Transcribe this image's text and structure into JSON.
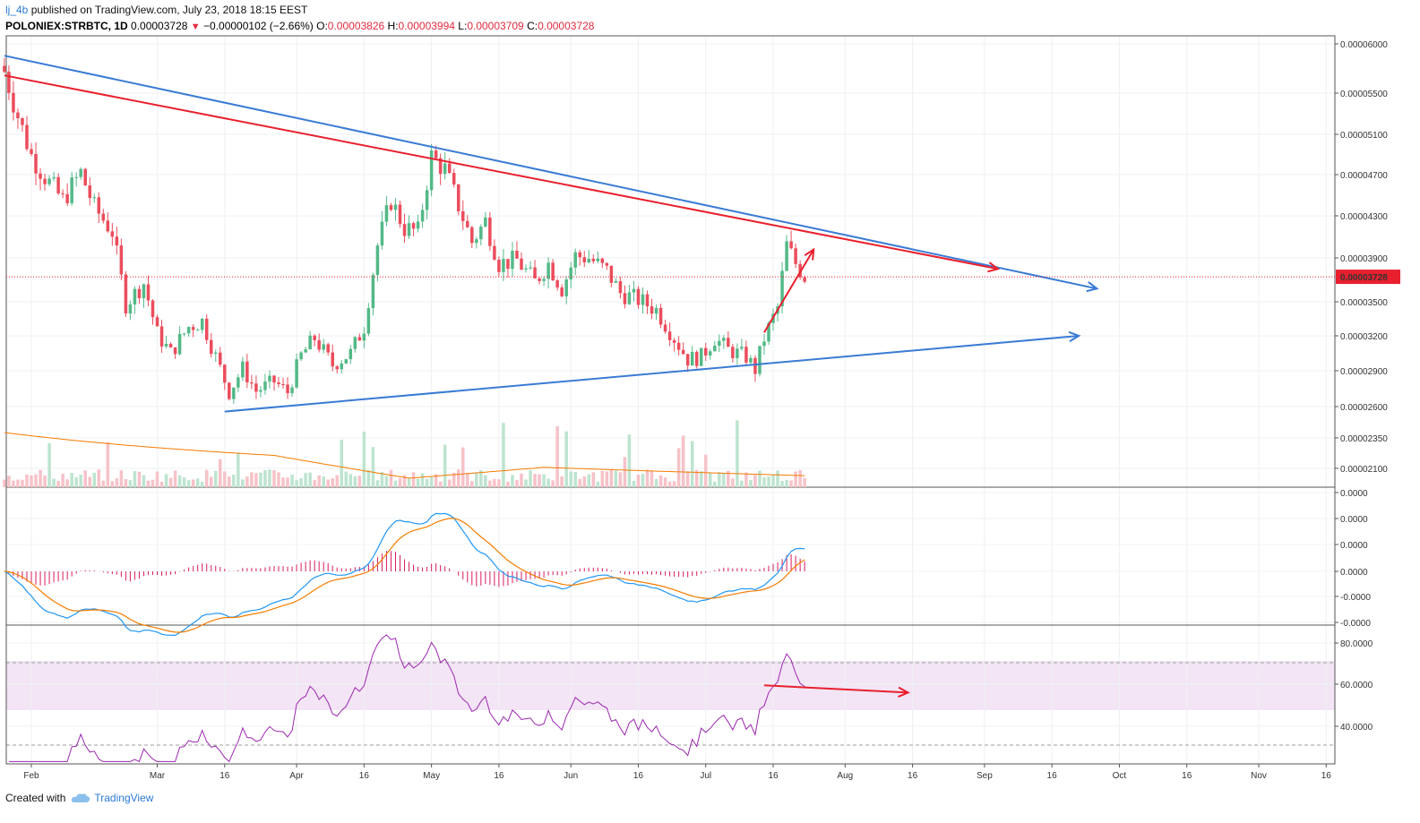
{
  "header": {
    "author": "lj_4b",
    "published_text": "published on TradingView.com, July 23, 2018 18:15 EEST",
    "symbol": "POLONIEX:STRBTC, 1D",
    "last": "0.00003728",
    "change": "−0.00000102 (−2.66%)",
    "o_label": "O:",
    "o_value": "0.00003826",
    "h_label": "H:",
    "h_value": "0.00003994",
    "l_label": "L:",
    "l_value": "0.00003709",
    "c_label": "C:",
    "c_value": "0.00003728"
  },
  "footer": {
    "created_with": "Created with",
    "brand": "TradingView"
  },
  "colors": {
    "up": "#53b987",
    "down": "#eb4d5c",
    "blue_line": "#3a7bd5",
    "red_line": "#e8202e",
    "macd_line": "#2196f3",
    "signal_line": "#f57c00",
    "hist": "#d81b60",
    "rsi": "#9c27b0",
    "rsi_band": "#f3e5f5",
    "volume_ma": "#f57c00",
    "last_price_badge": "#e8202e"
  },
  "chart_data": [
    {
      "type": "candlestick",
      "y_ticks": [
        "0.00006000",
        "0.00005500",
        "0.00005100",
        "0.00004700",
        "0.00004300",
        "0.00003900",
        "0.00003500",
        "0.00003200",
        "0.00002900",
        "0.00002600",
        "0.00002350",
        "0.00002100"
      ],
      "last_price_label": "0.00003728",
      "x_ticks": [
        "Feb",
        "Mar",
        "16",
        "Apr",
        "16",
        "May",
        "16",
        "Jun",
        "16",
        "Jul",
        "16",
        "Aug",
        "16",
        "Sep",
        "16",
        "Oct",
        "16",
        "Nov",
        "16"
      ],
      "x_tick_dates": [
        "2018-02-01",
        "2018-03-01",
        "2018-03-16",
        "2018-04-01",
        "2018-04-16",
        "2018-05-01",
        "2018-05-16",
        "2018-06-01",
        "2018-06-16",
        "2018-07-01",
        "2018-07-16",
        "2018-08-01",
        "2018-08-16",
        "2018-09-01",
        "2018-09-16",
        "2018-10-01",
        "2018-10-16",
        "2018-11-01",
        "2018-11-16"
      ],
      "keyframes": [
        [
          "2018-01-26",
          5.72e-05
        ],
        [
          "2018-01-29",
          5.28e-05
        ],
        [
          "2018-02-01",
          4.89e-05
        ],
        [
          "2018-02-04",
          4.68e-05
        ],
        [
          "2018-02-08",
          4.45e-05
        ],
        [
          "2018-02-12",
          4.72e-05
        ],
        [
          "2018-02-15",
          4.38e-05
        ],
        [
          "2018-02-19",
          4.15e-05
        ],
        [
          "2018-02-22",
          3.48e-05
        ],
        [
          "2018-02-26",
          3.67e-05
        ],
        [
          "2018-03-01",
          3.22e-05
        ],
        [
          "2018-03-04",
          3.05e-05
        ],
        [
          "2018-03-08",
          3.28e-05
        ],
        [
          "2018-03-11",
          3.33e-05
        ],
        [
          "2018-03-14",
          3.02e-05
        ],
        [
          "2018-03-17",
          2.72e-05
        ],
        [
          "2018-03-20",
          2.92e-05
        ],
        [
          "2018-03-23",
          2.73e-05
        ],
        [
          "2018-03-27",
          2.81e-05
        ],
        [
          "2018-03-30",
          2.72e-05
        ],
        [
          "2018-04-02",
          3.03e-05
        ],
        [
          "2018-04-05",
          3.18e-05
        ],
        [
          "2018-04-09",
          2.95e-05
        ],
        [
          "2018-04-13",
          3.05e-05
        ],
        [
          "2018-04-16",
          3.28e-05
        ],
        [
          "2018-04-19",
          4.02e-05
        ],
        [
          "2018-04-22",
          4.45e-05
        ],
        [
          "2018-04-25",
          4.18e-05
        ],
        [
          "2018-04-28",
          4.15e-05
        ],
        [
          "2018-05-01",
          4.88e-05
        ],
        [
          "2018-05-04",
          4.75e-05
        ],
        [
          "2018-05-07",
          4.4e-05
        ],
        [
          "2018-05-10",
          4.05e-05
        ],
        [
          "2018-05-13",
          4.25e-05
        ],
        [
          "2018-05-16",
          3.85e-05
        ],
        [
          "2018-05-20",
          3.88e-05
        ],
        [
          "2018-05-24",
          3.68e-05
        ],
        [
          "2018-05-27",
          3.85e-05
        ],
        [
          "2018-05-30",
          3.62e-05
        ],
        [
          "2018-06-02",
          3.92e-05
        ],
        [
          "2018-06-05",
          3.9e-05
        ],
        [
          "2018-06-09",
          3.78e-05
        ],
        [
          "2018-06-12",
          3.58e-05
        ],
        [
          "2018-06-16",
          3.52e-05
        ],
        [
          "2018-06-20",
          3.43e-05
        ],
        [
          "2018-06-24",
          3.18e-05
        ],
        [
          "2018-06-27",
          3e-05
        ],
        [
          "2018-06-30",
          3.02e-05
        ],
        [
          "2018-07-03",
          3.18e-05
        ],
        [
          "2018-07-06",
          3.08e-05
        ],
        [
          "2018-07-10",
          3.02e-05
        ],
        [
          "2018-07-12",
          2.91e-05
        ],
        [
          "2018-07-14",
          3.18e-05
        ],
        [
          "2018-07-17",
          3.45e-05
        ],
        [
          "2018-07-19",
          4.02e-05
        ],
        [
          "2018-07-21",
          3.85e-05
        ],
        [
          "2018-07-23",
          3.73e-05
        ]
      ],
      "trendlines": [
        {
          "name": "upper-blue",
          "color": "#3a7bd5",
          "from": [
            "2018-01-26",
            5.88e-05
          ],
          "to": [
            "2018-09-26",
            3.62e-05
          ],
          "arrow": true
        },
        {
          "name": "upper-red",
          "color": "#e8202e",
          "from": [
            "2018-01-26",
            5.68e-05
          ],
          "to": [
            "2018-09-04",
            3.8e-05
          ],
          "arrow": true
        },
        {
          "name": "lower-blue",
          "color": "#3a7bd5",
          "from": [
            "2018-03-16",
            2.56e-05
          ],
          "to": [
            "2018-09-22",
            3.2e-05
          ],
          "arrow": true
        },
        {
          "name": "short-red-up",
          "color": "#e8202e",
          "from": [
            "2018-07-14",
            3.23e-05
          ],
          "to": [
            "2018-07-25",
            3.98e-05
          ],
          "arrow": true
        }
      ]
    },
    {
      "type": "bar",
      "name": "Volume"
    },
    {
      "type": "line",
      "name": "MACD",
      "y_ticks": [
        "0.0000",
        "0.0000",
        "0.0000",
        "0.0000",
        "-0.0000",
        "-0.0000"
      ]
    },
    {
      "type": "line",
      "name": "RSI",
      "y_ticks": [
        "80.0000",
        "60.0000",
        "40.0000"
      ],
      "ylim": [
        20,
        90
      ],
      "bands": [
        30,
        70
      ],
      "divergence_arrow": {
        "from": [
          "2018-07-14",
          59
        ],
        "to": [
          "2018-08-15",
          55.5
        ]
      }
    }
  ]
}
